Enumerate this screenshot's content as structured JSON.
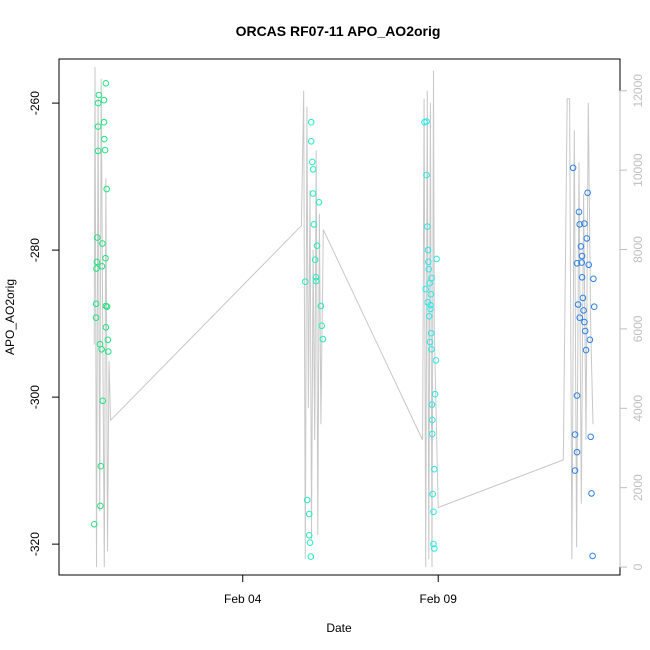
{
  "chart_data": {
    "type": "scatter",
    "title": "ORCAS RF07-11 APO_AO2orig",
    "xlabel": "Date",
    "ylabel": "APO_AO2orig",
    "x_ticks": [
      {
        "value": 4.0,
        "label": "Feb 04"
      },
      {
        "value": 9.0,
        "label": "Feb 09"
      }
    ],
    "y_ticks": [
      -320,
      -300,
      -280,
      -260
    ],
    "y2_ticks": [
      0,
      2000,
      4000,
      6000,
      8000,
      10000,
      12000
    ],
    "xlim": [
      -0.7,
      13.65
    ],
    "ylim": [
      -324.2,
      -254.0
    ],
    "y2lim": [
      -200,
      12800
    ],
    "colors": {
      "frame": "#000000",
      "secondary_axis": "#bfbfbf",
      "altitude_line": "#c8c8c8"
    },
    "series": [
      {
        "color": "#1ee37e",
        "points": [
          [
            0.2,
            -317.3
          ],
          [
            0.25,
            -287.3
          ],
          [
            0.25,
            -289.2
          ],
          [
            0.26,
            -282.5
          ],
          [
            0.27,
            -281.6
          ],
          [
            0.28,
            -278.3
          ],
          [
            0.3,
            -266.5
          ],
          [
            0.3,
            -263.2
          ],
          [
            0.3,
            -260.0
          ],
          [
            0.32,
            -258.9
          ],
          [
            0.35,
            -292.8
          ],
          [
            0.36,
            -314.8
          ],
          [
            0.37,
            -309.4
          ],
          [
            0.39,
            -293.5
          ],
          [
            0.4,
            -282.2
          ],
          [
            0.41,
            -279.1
          ],
          [
            0.42,
            -300.5
          ],
          [
            0.45,
            -259.6
          ],
          [
            0.45,
            -262.6
          ],
          [
            0.46,
            -264.9
          ],
          [
            0.48,
            -266.4
          ],
          [
            0.49,
            -281.1
          ],
          [
            0.5,
            -287.6
          ],
          [
            0.5,
            -290.5
          ],
          [
            0.52,
            -271.7
          ],
          [
            0.53,
            -287.7
          ],
          [
            0.55,
            -292.2
          ],
          [
            0.56,
            -293.8
          ],
          [
            0.5,
            -257.3
          ]
        ]
      },
      {
        "color": "#21edc0",
        "points": [
          [
            5.6,
            -284.3
          ],
          [
            5.65,
            -314.0
          ],
          [
            5.7,
            -315.9
          ],
          [
            5.7,
            -318.8
          ],
          [
            5.72,
            -319.8
          ],
          [
            5.74,
            -321.7
          ],
          [
            5.75,
            -262.6
          ],
          [
            5.75,
            -265.2
          ],
          [
            5.78,
            -268.0
          ],
          [
            5.8,
            -269.0
          ],
          [
            5.8,
            -272.3
          ],
          [
            5.82,
            -276.5
          ],
          [
            5.85,
            -281.3
          ],
          [
            5.87,
            -283.7
          ],
          [
            5.88,
            -284.2
          ],
          [
            5.9,
            -279.4
          ],
          [
            5.95,
            -273.5
          ],
          [
            6.0,
            -287.6
          ],
          [
            6.02,
            -290.3
          ],
          [
            6.05,
            -292.1
          ]
        ]
      },
      {
        "color": "#29e7e7",
        "points": [
          [
            8.65,
            -262.6
          ],
          [
            8.7,
            -262.5
          ],
          [
            8.7,
            -269.8
          ],
          [
            8.72,
            -276.8
          ],
          [
            8.74,
            -280.0
          ],
          [
            8.75,
            -281.6
          ],
          [
            8.76,
            -282.6
          ],
          [
            8.78,
            -284.5
          ],
          [
            8.8,
            -287.5
          ],
          [
            8.8,
            -288.0
          ],
          [
            8.82,
            -291.3
          ],
          [
            8.83,
            -293.5
          ],
          [
            8.84,
            -301.0
          ],
          [
            8.85,
            -303.1
          ],
          [
            8.85,
            -305.0
          ],
          [
            8.86,
            -313.2
          ],
          [
            8.88,
            -315.6
          ],
          [
            8.88,
            -320.0
          ],
          [
            8.9,
            -320.6
          ],
          [
            8.9,
            -309.8
          ],
          [
            8.92,
            -299.6
          ],
          [
            8.94,
            -295.0
          ],
          [
            8.96,
            -281.2
          ],
          [
            8.68,
            -285.3
          ],
          [
            8.73,
            -287.1
          ],
          [
            8.77,
            -289.0
          ],
          [
            8.79,
            -292.5
          ],
          [
            8.81,
            -286.0
          ],
          [
            8.83,
            -283.8
          ]
        ]
      },
      {
        "color": "#2a7fe6",
        "points": [
          [
            12.45,
            -268.8
          ],
          [
            12.5,
            -305.1
          ],
          [
            12.55,
            -307.5
          ],
          [
            12.5,
            -310.0
          ],
          [
            12.55,
            -299.8
          ],
          [
            12.58,
            -287.4
          ],
          [
            12.6,
            -274.8
          ],
          [
            12.62,
            -276.5
          ],
          [
            12.65,
            -279.5
          ],
          [
            12.67,
            -281.7
          ],
          [
            12.68,
            -283.7
          ],
          [
            12.7,
            -286.5
          ],
          [
            12.72,
            -288.2
          ],
          [
            12.74,
            -289.8
          ],
          [
            12.76,
            -291.0
          ],
          [
            12.78,
            -293.6
          ],
          [
            12.8,
            -278.4
          ],
          [
            12.82,
            -272.2
          ],
          [
            12.85,
            -282.0
          ],
          [
            12.88,
            -292.2
          ],
          [
            12.9,
            -305.4
          ],
          [
            12.92,
            -313.1
          ],
          [
            12.95,
            -321.6
          ],
          [
            12.97,
            -283.9
          ],
          [
            12.99,
            -287.7
          ],
          [
            12.55,
            -281.8
          ],
          [
            12.62,
            -289.2
          ],
          [
            12.68,
            -280.8
          ],
          [
            12.74,
            -276.4
          ]
        ]
      }
    ],
    "altitude_line": [
      [
        0.2,
        5600
      ],
      [
        0.22,
        12600
      ],
      [
        0.26,
        0
      ],
      [
        0.3,
        11800
      ],
      [
        0.34,
        1400
      ],
      [
        0.38,
        12300
      ],
      [
        0.42,
        5600
      ],
      [
        0.46,
        0
      ],
      [
        0.5,
        9800
      ],
      [
        0.54,
        400
      ],
      [
        0.58,
        5200
      ],
      [
        0.62,
        3700
      ],
      [
        5.5,
        8600
      ],
      [
        5.56,
        12000
      ],
      [
        5.6,
        200
      ],
      [
        5.64,
        11600
      ],
      [
        5.68,
        4000
      ],
      [
        5.72,
        9500
      ],
      [
        5.76,
        700
      ],
      [
        5.8,
        8000
      ],
      [
        5.84,
        3200
      ],
      [
        5.88,
        10500
      ],
      [
        5.92,
        800
      ],
      [
        5.96,
        8900
      ],
      [
        6.0,
        3600
      ],
      [
        6.06,
        8500
      ],
      [
        8.6,
        3200
      ],
      [
        8.64,
        11800
      ],
      [
        8.68,
        0
      ],
      [
        8.72,
        12000
      ],
      [
        8.76,
        200
      ],
      [
        8.8,
        11700
      ],
      [
        8.84,
        0
      ],
      [
        8.88,
        12500
      ],
      [
        8.9,
        6000
      ],
      [
        9.0,
        1500
      ],
      [
        12.2,
        2700
      ],
      [
        12.3,
        11800
      ],
      [
        12.36,
        11800
      ],
      [
        12.42,
        200
      ],
      [
        12.48,
        11000
      ],
      [
        12.54,
        500
      ],
      [
        12.6,
        10200
      ],
      [
        12.66,
        1600
      ],
      [
        12.72,
        9400
      ],
      [
        12.78,
        3200
      ],
      [
        12.84,
        11700
      ],
      [
        12.9,
        6000
      ],
      [
        12.96,
        3600
      ]
    ]
  }
}
